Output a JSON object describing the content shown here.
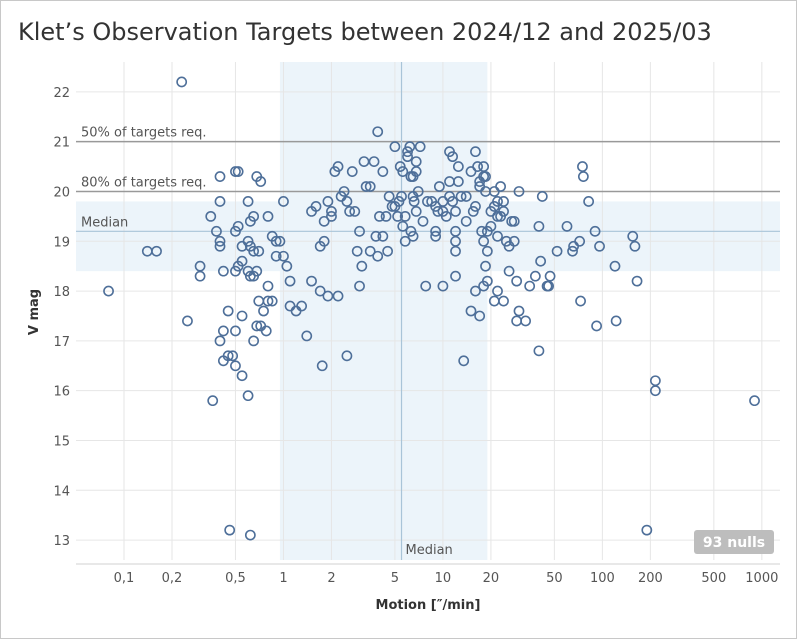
{
  "title": "Klet’s Observation Targets between  2024/12 and 2025/03",
  "nulls_badge": "93 nulls",
  "chart_data": {
    "type": "scatter",
    "title": "Klet’s Observation Targets between  2024/12 and 2025/03",
    "xlabel": "Motion [″/min]",
    "ylabel": "V mag",
    "x_scale": "log",
    "xlim": [
      0.05,
      1300
    ],
    "ylim": [
      12.6,
      22.6
    ],
    "x_ticks": [
      0.1,
      0.2,
      0.5,
      1,
      2,
      5,
      10,
      20,
      50,
      100,
      200,
      500,
      1000
    ],
    "x_tick_labels": [
      "0,1",
      "0,2",
      "0,5",
      "1",
      "2",
      "5",
      "10",
      "20",
      "50",
      "100",
      "200",
      "500",
      "1000"
    ],
    "y_ticks": [
      13,
      14,
      15,
      16,
      17,
      18,
      19,
      20,
      21,
      22
    ],
    "y_tick_labels": [
      "13",
      "14",
      "15",
      "16",
      "17",
      "18",
      "19",
      "20",
      "21",
      "22"
    ],
    "grid": true,
    "reference_lines": [
      {
        "axis": "y",
        "value": 21.0,
        "label": "50% of targets req."
      },
      {
        "axis": "y",
        "value": 20.0,
        "label": "80% of targets req."
      },
      {
        "axis": "y",
        "value": 19.2,
        "label": "Median"
      },
      {
        "axis": "x",
        "value": 5.5,
        "label": "Median"
      }
    ],
    "bands": [
      {
        "axis": "x",
        "from": 0.95,
        "to": 19
      },
      {
        "axis": "y",
        "from": 18.4,
        "to": 19.8
      }
    ],
    "colors": {
      "marker": "#4e6f99",
      "band": "#ecf4fa",
      "median_line": "#a9c4d8",
      "ref_line": "#999999",
      "badge": "#bdbdbd"
    },
    "points": [
      [
        0.23,
        22.2
      ],
      [
        0.08,
        18.0
      ],
      [
        0.14,
        18.8
      ],
      [
        0.16,
        18.8
      ],
      [
        0.25,
        17.4
      ],
      [
        0.3,
        18.5
      ],
      [
        0.3,
        18.3
      ],
      [
        0.35,
        19.5
      ],
      [
        0.36,
        15.8
      ],
      [
        0.38,
        19.2
      ],
      [
        0.4,
        20.3
      ],
      [
        0.4,
        19.8
      ],
      [
        0.4,
        19.0
      ],
      [
        0.4,
        18.9
      ],
      [
        0.42,
        18.4
      ],
      [
        0.4,
        17.0
      ],
      [
        0.42,
        16.6
      ],
      [
        0.42,
        17.2
      ],
      [
        0.45,
        16.7
      ],
      [
        0.45,
        17.6
      ],
      [
        0.48,
        16.7
      ],
      [
        0.46,
        13.2
      ],
      [
        0.5,
        20.4
      ],
      [
        0.52,
        20.4
      ],
      [
        0.5,
        19.2
      ],
      [
        0.52,
        19.3
      ],
      [
        0.55,
        18.9
      ],
      [
        0.55,
        18.6
      ],
      [
        0.5,
        18.4
      ],
      [
        0.52,
        18.5
      ],
      [
        0.5,
        17.2
      ],
      [
        0.5,
        16.5
      ],
      [
        0.55,
        16.3
      ],
      [
        0.6,
        15.9
      ],
      [
        0.55,
        17.5
      ],
      [
        0.6,
        19.8
      ],
      [
        0.62,
        19.4
      ],
      [
        0.65,
        19.5
      ],
      [
        0.6,
        19.0
      ],
      [
        0.62,
        18.9
      ],
      [
        0.65,
        18.8
      ],
      [
        0.6,
        18.4
      ],
      [
        0.62,
        18.3
      ],
      [
        0.65,
        18.3
      ],
      [
        0.68,
        18.4
      ],
      [
        0.7,
        18.8
      ],
      [
        0.7,
        17.8
      ],
      [
        0.68,
        17.3
      ],
      [
        0.72,
        17.3
      ],
      [
        0.65,
        17.0
      ],
      [
        0.75,
        17.6
      ],
      [
        0.8,
        17.8
      ],
      [
        0.78,
        17.2
      ],
      [
        0.62,
        13.1
      ],
      [
        0.68,
        20.3
      ],
      [
        0.72,
        20.2
      ],
      [
        0.8,
        19.5
      ],
      [
        0.85,
        19.1
      ],
      [
        0.9,
        19.0
      ],
      [
        0.95,
        19.0
      ],
      [
        0.9,
        18.7
      ],
      [
        0.8,
        18.1
      ],
      [
        0.85,
        17.8
      ],
      [
        1.0,
        19.8
      ],
      [
        1.05,
        18.5
      ],
      [
        1.1,
        18.2
      ],
      [
        1.0,
        18.7
      ],
      [
        1.2,
        17.6
      ],
      [
        1.1,
        17.7
      ],
      [
        1.3,
        17.7
      ],
      [
        1.4,
        17.1
      ],
      [
        1.5,
        18.2
      ],
      [
        1.5,
        19.6
      ],
      [
        1.6,
        19.7
      ],
      [
        1.7,
        18.0
      ],
      [
        1.8,
        19.0
      ],
      [
        1.9,
        17.9
      ],
      [
        1.7,
        18.9
      ],
      [
        1.8,
        19.4
      ],
      [
        1.9,
        19.8
      ],
      [
        2.0,
        19.5
      ],
      [
        2.0,
        19.6
      ],
      [
        2.1,
        20.4
      ],
      [
        2.2,
        20.5
      ],
      [
        2.3,
        19.9
      ],
      [
        2.5,
        19.8
      ],
      [
        2.4,
        20.0
      ],
      [
        2.6,
        19.6
      ],
      [
        2.8,
        19.6
      ],
      [
        2.7,
        20.4
      ],
      [
        2.2,
        17.9
      ],
      [
        2.5,
        16.7
      ],
      [
        1.75,
        16.5
      ],
      [
        2.9,
        18.8
      ],
      [
        3.0,
        19.2
      ],
      [
        3.1,
        18.5
      ],
      [
        3.0,
        18.1
      ],
      [
        3.2,
        20.6
      ],
      [
        3.3,
        20.1
      ],
      [
        3.5,
        20.1
      ],
      [
        3.7,
        20.6
      ],
      [
        3.8,
        19.1
      ],
      [
        3.9,
        18.7
      ],
      [
        4.0,
        19.5
      ],
      [
        3.5,
        18.8
      ],
      [
        3.9,
        21.2
      ],
      [
        4.2,
        19.1
      ],
      [
        4.2,
        20.4
      ],
      [
        4.4,
        19.5
      ],
      [
        4.6,
        19.9
      ],
      [
        4.8,
        19.7
      ],
      [
        4.5,
        18.8
      ],
      [
        5.0,
        20.9
      ],
      [
        5.0,
        19.7
      ],
      [
        5.2,
        19.5
      ],
      [
        5.4,
        20.5
      ],
      [
        5.6,
        20.4
      ],
      [
        5.5,
        19.9
      ],
      [
        5.3,
        19.8
      ],
      [
        5.6,
        19.3
      ],
      [
        5.8,
        19.5
      ],
      [
        6.0,
        20.8
      ],
      [
        6.2,
        20.9
      ],
      [
        6.0,
        20.7
      ],
      [
        6.3,
        20.3
      ],
      [
        6.5,
        20.3
      ],
      [
        6.5,
        19.9
      ],
      [
        6.8,
        20.4
      ],
      [
        6.6,
        19.8
      ],
      [
        6.8,
        19.6
      ],
      [
        7.0,
        20.0
      ],
      [
        7.2,
        20.9
      ],
      [
        6.5,
        19.1
      ],
      [
        6.3,
        19.2
      ],
      [
        5.8,
        19.0
      ],
      [
        6.8,
        20.6
      ],
      [
        7.5,
        19.4
      ],
      [
        7.8,
        18.1
      ],
      [
        8.0,
        19.8
      ],
      [
        8.5,
        19.8
      ],
      [
        9.0,
        19.7
      ],
      [
        9.0,
        19.2
      ],
      [
        9.0,
        19.1
      ],
      [
        9.3,
        19.6
      ],
      [
        9.5,
        20.1
      ],
      [
        10.0,
        19.6
      ],
      [
        10.0,
        19.8
      ],
      [
        10.5,
        19.5
      ],
      [
        11.0,
        19.9
      ],
      [
        11.0,
        20.8
      ],
      [
        11.5,
        20.7
      ],
      [
        11.0,
        20.2
      ],
      [
        12.0,
        19.6
      ],
      [
        12.0,
        19.2
      ],
      [
        12.5,
        20.5
      ],
      [
        12.5,
        20.2
      ],
      [
        11.5,
        19.8
      ],
      [
        12.0,
        19.0
      ],
      [
        12.0,
        18.8
      ],
      [
        13.0,
        19.9
      ],
      [
        14.0,
        19.9
      ],
      [
        14.0,
        19.4
      ],
      [
        15.0,
        20.4
      ],
      [
        15.5,
        19.6
      ],
      [
        16.0,
        20.8
      ],
      [
        16.0,
        19.7
      ],
      [
        16.5,
        20.5
      ],
      [
        17.0,
        20.2
      ],
      [
        17.0,
        20.1
      ],
      [
        18.0,
        20.3
      ],
      [
        18.5,
        20.3
      ],
      [
        18.0,
        20.5
      ],
      [
        18.5,
        20.0
      ],
      [
        17.5,
        19.2
      ],
      [
        18.0,
        19.0
      ],
      [
        18.5,
        18.5
      ],
      [
        19.0,
        19.2
      ],
      [
        19.0,
        18.8
      ],
      [
        20.0,
        19.6
      ],
      [
        20.0,
        19.3
      ],
      [
        21.0,
        20.0
      ],
      [
        21.0,
        19.7
      ],
      [
        22.0,
        19.8
      ],
      [
        22.0,
        19.5
      ],
      [
        22.0,
        19.1
      ],
      [
        23.0,
        20.1
      ],
      [
        23.0,
        19.5
      ],
      [
        24.0,
        19.8
      ],
      [
        24.0,
        19.6
      ],
      [
        25.0,
        19.0
      ],
      [
        26.0,
        18.9
      ],
      [
        27.0,
        19.4
      ],
      [
        28.0,
        19.4
      ],
      [
        28.0,
        19.0
      ],
      [
        26.0,
        18.4
      ],
      [
        29.0,
        18.2
      ],
      [
        30.0,
        20.0
      ],
      [
        30.0,
        17.6
      ],
      [
        29.0,
        17.4
      ],
      [
        33.0,
        17.4
      ],
      [
        35.0,
        18.1
      ],
      [
        38.0,
        18.3
      ],
      [
        40.0,
        19.3
      ],
      [
        41.0,
        18.6
      ],
      [
        42.0,
        19.9
      ],
      [
        40.0,
        16.8
      ],
      [
        45.0,
        18.1
      ],
      [
        46.0,
        18.1
      ],
      [
        47.0,
        18.3
      ],
      [
        52.0,
        18.8
      ],
      [
        15.0,
        17.6
      ],
      [
        17.0,
        17.5
      ],
      [
        16.0,
        18.0
      ],
      [
        18.0,
        18.1
      ],
      [
        19.0,
        18.2
      ],
      [
        21.0,
        17.8
      ],
      [
        22.0,
        18.0
      ],
      [
        24.0,
        17.8
      ],
      [
        13.5,
        16.6
      ],
      [
        10.0,
        18.1
      ],
      [
        60.0,
        19.3
      ],
      [
        65.0,
        18.8
      ],
      [
        66.0,
        18.9
      ],
      [
        72.0,
        19.0
      ],
      [
        73.0,
        17.8
      ],
      [
        75.0,
        20.5
      ],
      [
        76.0,
        20.3
      ],
      [
        82.0,
        19.8
      ],
      [
        90.0,
        19.2
      ],
      [
        92.0,
        17.3
      ],
      [
        96.0,
        18.9
      ],
      [
        120.0,
        18.5
      ],
      [
        122.0,
        17.4
      ],
      [
        155.0,
        19.1
      ],
      [
        160.0,
        18.9
      ],
      [
        165.0,
        18.2
      ],
      [
        190.0,
        13.2
      ],
      [
        215.0,
        16.2
      ],
      [
        215.0,
        16.0
      ],
      [
        900.0,
        15.8
      ],
      [
        12.0,
        18.3
      ]
    ]
  }
}
